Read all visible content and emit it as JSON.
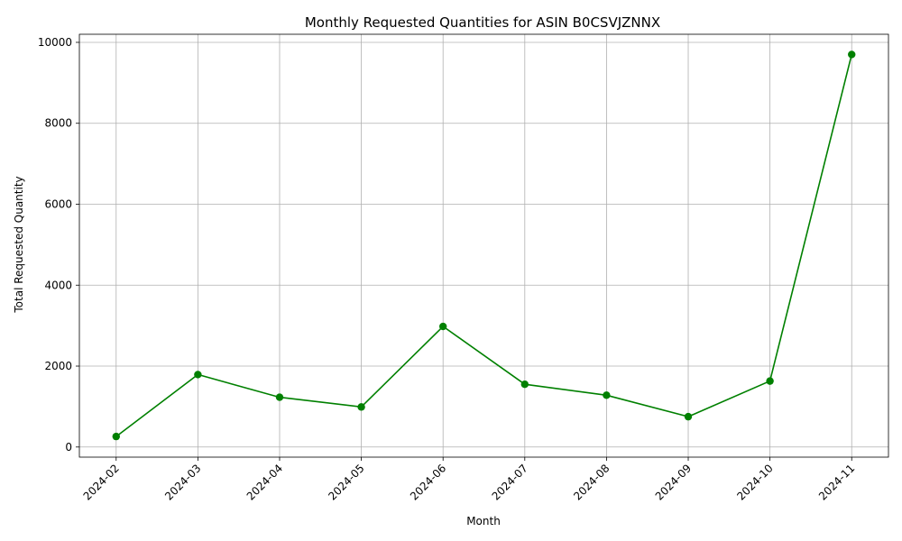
{
  "chart_data": {
    "type": "line",
    "title": "Monthly Requested Quantities for ASIN B0CSVJZNNX",
    "xlabel": "Month",
    "ylabel": "Total Requested Quantity",
    "categories": [
      "2024-02",
      "2024-03",
      "2024-04",
      "2024-05",
      "2024-06",
      "2024-07",
      "2024-08",
      "2024-09",
      "2024-10",
      "2024-11"
    ],
    "series": [
      {
        "values": [
          260,
          1790,
          1230,
          990,
          2980,
          1550,
          1280,
          750,
          1630,
          9700
        ],
        "color": "#008000",
        "marker": "circle"
      }
    ],
    "ylim": [
      -250,
      10200
    ],
    "yticks": [
      0,
      2000,
      4000,
      6000,
      8000,
      10000
    ],
    "grid": true,
    "x_tick_rotation": 45
  }
}
